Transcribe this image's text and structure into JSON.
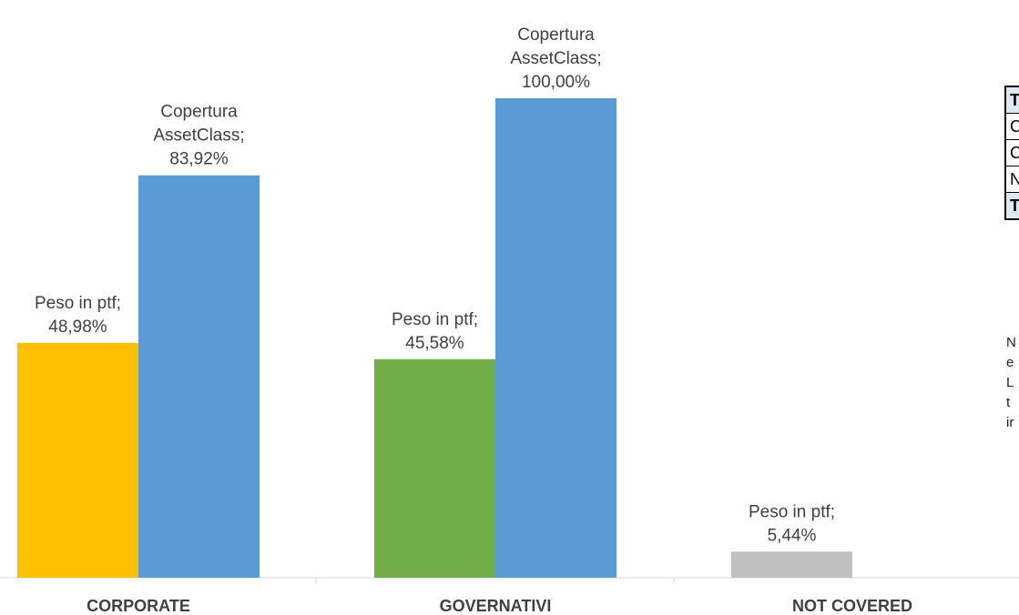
{
  "chart_data": {
    "type": "bar",
    "categories": [
      "CORPORATE",
      "GOVERNATIVI",
      "NOT COVERED"
    ],
    "series": [
      {
        "name": "Peso in ptf",
        "values": [
          48.98,
          45.58,
          5.44
        ],
        "point_colors": [
          "#FFC000",
          "#70AD47",
          "#BFBFBF"
        ]
      },
      {
        "name": "Copertura AssetClass",
        "values": [
          83.92,
          100.0,
          null
        ],
        "color": "#5B9BD5"
      }
    ],
    "data_labels": [
      [
        [
          "Peso in ptf;",
          "48,98%"
        ],
        [
          "Peso in ptf;",
          "45,58%"
        ],
        [
          "Peso in ptf;",
          "5,44%"
        ]
      ],
      [
        [
          "Copertura",
          "AssetClass;",
          "83,92%"
        ],
        [
          "Copertura",
          "AssetClass;",
          "100,00%"
        ],
        null
      ]
    ],
    "title": "",
    "xlabel": "",
    "ylabel": "",
    "ylim": [
      0,
      100
    ],
    "grid": false,
    "legend": "none"
  },
  "side_table": {
    "rows": [
      "T",
      "C",
      "C",
      "N",
      "T"
    ]
  },
  "side_note": {
    "lines": [
      "N",
      "e",
      "L",
      "t",
      "ir"
    ]
  }
}
